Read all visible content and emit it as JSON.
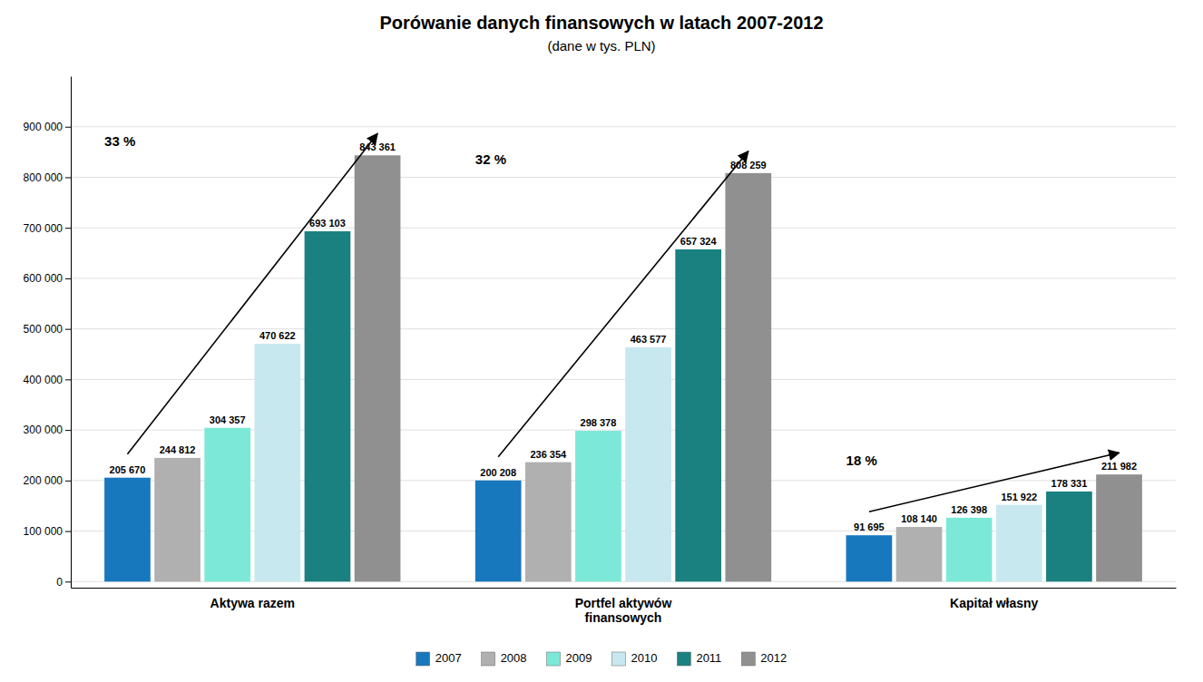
{
  "chart_data": {
    "type": "bar",
    "title": "Porówanie danych finansowych w latach 2007-2012",
    "subtitle": "(dane w tys. PLN)",
    "categories": [
      "Aktywa razem",
      "Portfel aktywów\nfinansowych",
      "Kapitał własny"
    ],
    "series": [
      {
        "name": "2007",
        "color": "#1878BE",
        "values": [
          205670,
          200208,
          91695
        ],
        "value_labels": [
          "205 670",
          "200 208",
          "91 695"
        ]
      },
      {
        "name": "2008",
        "color": "#B0B0B0",
        "values": [
          244812,
          236354,
          108140
        ],
        "value_labels": [
          "244 812",
          "236 354",
          "108 140"
        ]
      },
      {
        "name": "2009",
        "color": "#7CE8D8",
        "values": [
          304357,
          298378,
          126398
        ],
        "value_labels": [
          "304 357",
          "298 378",
          "126 398"
        ]
      },
      {
        "name": "2010",
        "color": "#C8E8F0",
        "values": [
          470622,
          463577,
          151922
        ],
        "value_labels": [
          "470 622",
          "463 577",
          "151 922"
        ]
      },
      {
        "name": "2011",
        "color": "#1A8080",
        "values": [
          693103,
          657324,
          178331
        ],
        "value_labels": [
          "693 103",
          "657 324",
          "178 331"
        ]
      },
      {
        "name": "2012",
        "color": "#909090",
        "values": [
          843361,
          808259,
          211982
        ],
        "value_labels": [
          "843 361",
          "808 259",
          "211 982"
        ]
      }
    ],
    "ylim": [
      -12000,
      1000000
    ],
    "yticks": [
      0,
      {
        "value": 100000,
        "label": "100 000"
      },
      {
        "value": 200000,
        "label": "200 000"
      },
      {
        "value": 300000,
        "label": "300 000"
      },
      {
        "value": 400000,
        "label": "400 000"
      },
      {
        "value": 500000,
        "label": "500 000"
      },
      {
        "value": 600000,
        "label": "600 000"
      },
      {
        "value": 700000,
        "label": "700 000"
      },
      {
        "value": 800000,
        "label": "800 000"
      },
      {
        "value": 900000,
        "label": "900 000"
      }
    ],
    "grid": true,
    "data_labels": true,
    "legend": "bottom",
    "annotations": [
      "33 %",
      "32 %",
      "18 %"
    ]
  }
}
